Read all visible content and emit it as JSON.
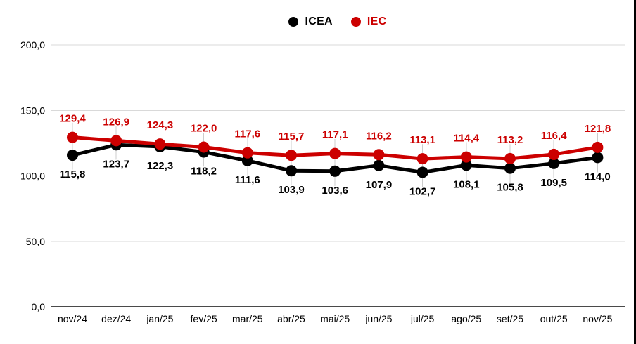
{
  "chart_data": {
    "type": "line",
    "title": "",
    "categories": [
      "nov/24",
      "dez/24",
      "jan/25",
      "fev/25",
      "mar/25",
      "abr/25",
      "mai/25",
      "jun/25",
      "jul/25",
      "ago/25",
      "set/25",
      "out/25",
      "nov/25"
    ],
    "series": [
      {
        "name": "ICEA",
        "color": "#000000",
        "data_label_position": "below",
        "values": [
          115.8,
          123.7,
          122.3,
          118.2,
          111.6,
          103.9,
          103.6,
          107.9,
          102.7,
          108.1,
          105.8,
          109.5,
          114.0
        ]
      },
      {
        "name": "IEC",
        "color": "#cc0000",
        "data_label_position": "above",
        "values": [
          129.4,
          126.9,
          124.3,
          122.0,
          117.6,
          115.7,
          117.1,
          116.2,
          113.1,
          114.4,
          113.2,
          116.4,
          121.8
        ]
      }
    ],
    "ylim": [
      0,
      200
    ],
    "yticks": [
      0,
      50,
      100,
      150,
      200
    ],
    "ytick_labels": [
      "0,0",
      "50,0",
      "100,0",
      "150,0",
      "200,0"
    ],
    "decimal_separator": ",",
    "grid": true,
    "legend_position": "top-center",
    "colors": {
      "grid": "#d9d9d9",
      "axis_baseline": "#4a4a4a",
      "leader_line": "#cccccc",
      "tick_text": "#000000",
      "background": "#ffffff",
      "border_right": "#000000"
    }
  }
}
